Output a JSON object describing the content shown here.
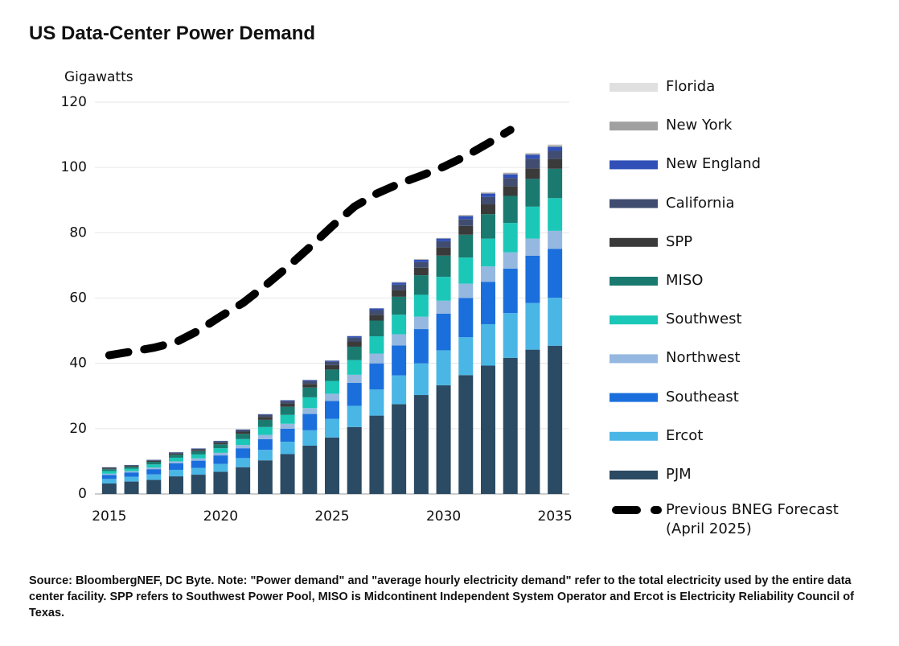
{
  "chart_data": {
    "type": "bar",
    "stacked": true,
    "title": "US Data-Center Power Demand",
    "y_label": "Gigawatts",
    "source": "Source: BloombergNEF, DC Byte. Note: \"Power demand\" and \"average hourly electricity demand\" refer to the total electricity used by the entire data center facility. SPP refers to Southwest Power Pool, MISO is Midcontinent Independent System Operator and Ercot is Electricity Reliability Council of Texas.",
    "categories": [
      "2015",
      null,
      null,
      null,
      null,
      "2020",
      null,
      null,
      null,
      null,
      "2025",
      null,
      null,
      null,
      null,
      "2030",
      null,
      null,
      null,
      null,
      "2035"
    ],
    "ylim": [
      0,
      120
    ],
    "yticks": [
      0,
      20,
      40,
      60,
      80,
      100,
      120
    ],
    "grid": true,
    "legend": "right",
    "series": [
      {
        "name": "PJM",
        "color": "#2b4a63",
        "values": [
          3.2,
          3.8,
          4.3,
          5.4,
          5.9,
          6.8,
          8.2,
          10.3,
          12.2,
          14.8,
          17.3,
          20.5,
          24,
          27.5,
          30.3,
          33.3,
          36.4,
          39.3,
          41.7,
          44.2,
          45.4
        ]
      },
      {
        "name": "Ercot",
        "color": "#4ab6e6",
        "values": [
          1.4,
          1.5,
          1.7,
          2,
          2.1,
          2.4,
          2.8,
          3.2,
          3.8,
          4.7,
          5.7,
          6.5,
          8,
          8.8,
          9.7,
          10.7,
          11.6,
          12.7,
          13.7,
          14.3,
          14.7
        ]
      },
      {
        "name": "Southeast",
        "color": "#1a6fdc",
        "values": [
          1.2,
          1.3,
          1.6,
          2,
          2.2,
          2.6,
          3,
          3.3,
          4,
          5,
          5.5,
          7,
          8,
          9.2,
          10.5,
          11.2,
          12,
          13,
          13.6,
          14.5,
          15
        ]
      },
      {
        "name": "Northwest",
        "color": "#95b8e0",
        "values": [
          0.4,
          0.4,
          0.5,
          0.6,
          0.7,
          0.8,
          1,
          1.3,
          1.5,
          1.8,
          2.2,
          2.5,
          3,
          3.4,
          3.8,
          4,
          4.4,
          4.7,
          5,
          5.2,
          5.5
        ]
      },
      {
        "name": "Southwest",
        "color": "#1bc8b8",
        "values": [
          0.8,
          0.75,
          0.95,
          1.1,
          1.2,
          1.4,
          1.8,
          2.4,
          2.7,
          3.3,
          3.9,
          4.5,
          5.3,
          6,
          6.7,
          7.3,
          8,
          8.5,
          9,
          9.8,
          10
        ]
      },
      {
        "name": "MISO",
        "color": "#1a7a70",
        "values": [
          0.6,
          0.6,
          0.8,
          0.9,
          1,
          1.2,
          1.6,
          2.2,
          2.5,
          3,
          3.5,
          4.1,
          4.8,
          5.5,
          6,
          6.5,
          7,
          7.5,
          8.3,
          8.5,
          9
        ]
      },
      {
        "name": "SPP",
        "color": "#3a3a3a",
        "values": [
          0.25,
          0.25,
          0.3,
          0.35,
          0.4,
          0.5,
          0.7,
          0.9,
          1,
          1.1,
          1.4,
          1.6,
          1.8,
          2.1,
          2.3,
          2.5,
          2.7,
          3,
          3,
          3.2,
          3
        ]
      },
      {
        "name": "California",
        "color": "#404d70",
        "values": [
          0.29,
          0.24,
          0.28,
          0.35,
          0.38,
          0.45,
          0.5,
          0.7,
          0.8,
          0.9,
          1,
          1.2,
          1.4,
          1.6,
          1.7,
          1.9,
          2.1,
          2.3,
          2.5,
          3,
          2.5
        ]
      },
      {
        "name": "New England",
        "color": "#3050b8",
        "values": [
          0.04,
          0.04,
          0.05,
          0.07,
          0.08,
          0.1,
          0.15,
          0.15,
          0.2,
          0.3,
          0.3,
          0.4,
          0.5,
          0.6,
          0.7,
          0.8,
          0.9,
          1,
          1.1,
          1.2,
          1.2
        ]
      },
      {
        "name": "New York",
        "color": "#a0a0a0",
        "values": [
          0.01,
          0.01,
          0.01,
          0.02,
          0.02,
          0.03,
          0.03,
          0.03,
          0.05,
          0.05,
          0.1,
          0.1,
          0.1,
          0.2,
          0.2,
          0.2,
          0.3,
          0.3,
          0.4,
          0.4,
          0.5
        ]
      },
      {
        "name": "Florida",
        "color": "#e0e0e0",
        "values": [
          0.01,
          0.01,
          0.01,
          0.01,
          0.02,
          0.02,
          0.02,
          0.02,
          0.05,
          0.05,
          0.1,
          0.1,
          0.1,
          0.1,
          0.1,
          0.1,
          0.1,
          0.2,
          0.2,
          0.2,
          0.3
        ]
      },
      {
        "name": "Previous BNEG Forecast (April 2025)",
        "color": "#000000",
        "type": "line",
        "line_style": "dashed",
        "values": [
          42.5,
          43.6,
          44.8,
          46.5,
          50,
          54.4,
          58.5,
          63.8,
          69.5,
          75.6,
          82,
          88,
          92,
          95,
          97.5,
          100.2,
          103.5,
          107.4,
          111.5,
          null,
          null
        ]
      }
    ]
  }
}
